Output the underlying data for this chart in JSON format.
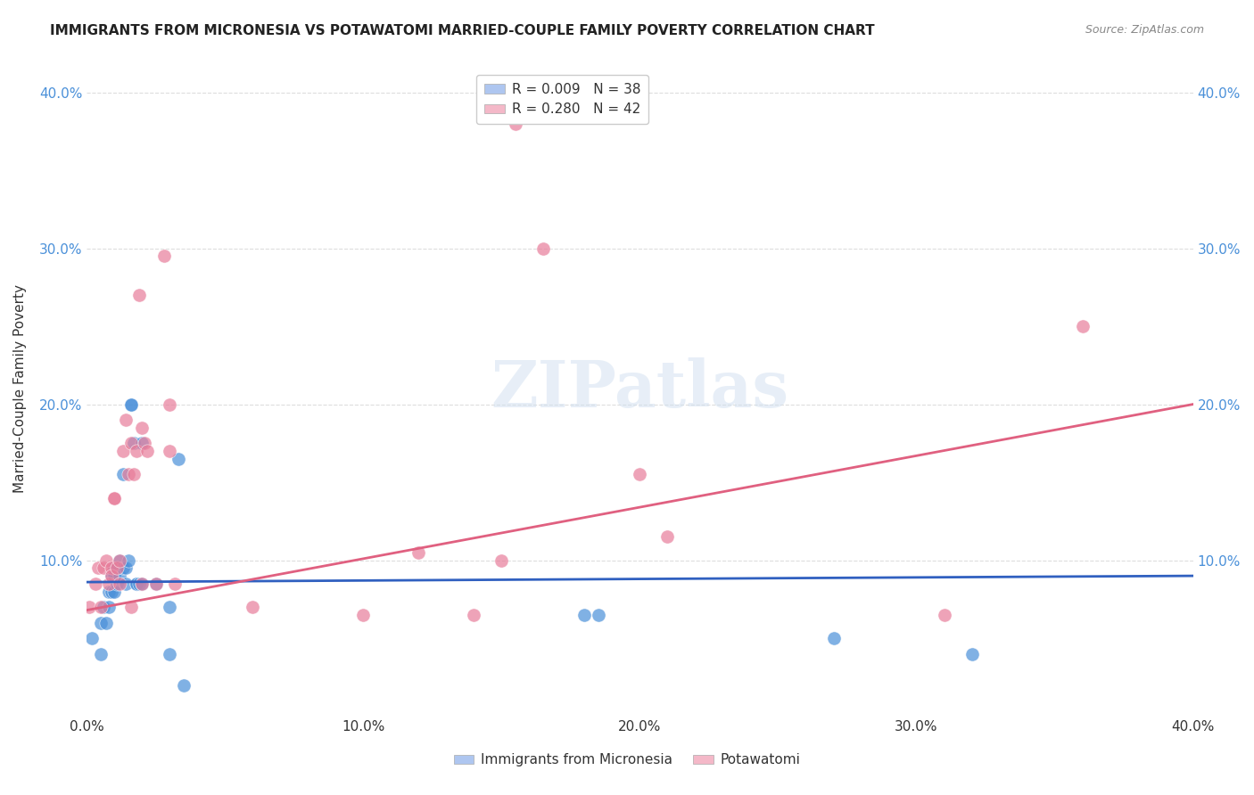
{
  "title": "IMMIGRANTS FROM MICRONESIA VS POTAWATOMI MARRIED-COUPLE FAMILY POVERTY CORRELATION CHART",
  "source": "Source: ZipAtlas.com",
  "xlabel": "",
  "ylabel": "Married-Couple Family Poverty",
  "xlim": [
    0.0,
    0.4
  ],
  "ylim": [
    0.0,
    0.42
  ],
  "xticks": [
    0.0,
    0.1,
    0.2,
    0.3,
    0.4
  ],
  "yticks": [
    0.1,
    0.2,
    0.3,
    0.4
  ],
  "ytick_labels": [
    "10.0%",
    "20.0%",
    "30.0%",
    "40.0%"
  ],
  "xtick_labels": [
    "0.0%",
    "10.0%",
    "20.0%",
    "30.0%",
    "40.0%"
  ],
  "legend_labels": [
    "R = 0.009   N = 38",
    "R = 0.280   N = 42"
  ],
  "legend_colors": [
    "#aec6f0",
    "#f4b8c8"
  ],
  "blue_color": "#4a90d9",
  "pink_color": "#e87d9a",
  "line_blue": "#3060c0",
  "line_pink": "#e06080",
  "watermark": "ZIPatlas",
  "micronesia_x": [
    0.002,
    0.005,
    0.005,
    0.006,
    0.007,
    0.008,
    0.008,
    0.009,
    0.009,
    0.01,
    0.01,
    0.01,
    0.011,
    0.011,
    0.012,
    0.012,
    0.013,
    0.013,
    0.014,
    0.014,
    0.015,
    0.016,
    0.016,
    0.017,
    0.018,
    0.018,
    0.019,
    0.02,
    0.02,
    0.025,
    0.03,
    0.03,
    0.033,
    0.035,
    0.18,
    0.185,
    0.27,
    0.32
  ],
  "micronesia_y": [
    0.05,
    0.06,
    0.04,
    0.07,
    0.06,
    0.08,
    0.07,
    0.09,
    0.08,
    0.095,
    0.09,
    0.08,
    0.095,
    0.085,
    0.1,
    0.09,
    0.155,
    0.095,
    0.095,
    0.085,
    0.1,
    0.2,
    0.2,
    0.175,
    0.085,
    0.085,
    0.085,
    0.175,
    0.085,
    0.085,
    0.07,
    0.04,
    0.165,
    0.02,
    0.065,
    0.065,
    0.05,
    0.04
  ],
  "potawatomi_x": [
    0.001,
    0.003,
    0.004,
    0.005,
    0.006,
    0.007,
    0.008,
    0.009,
    0.009,
    0.01,
    0.01,
    0.011,
    0.012,
    0.012,
    0.013,
    0.014,
    0.015,
    0.016,
    0.016,
    0.017,
    0.018,
    0.019,
    0.02,
    0.02,
    0.021,
    0.022,
    0.025,
    0.028,
    0.03,
    0.03,
    0.032,
    0.06,
    0.1,
    0.12,
    0.14,
    0.15,
    0.155,
    0.165,
    0.2,
    0.21,
    0.31,
    0.36
  ],
  "potawatomi_y": [
    0.07,
    0.085,
    0.095,
    0.07,
    0.095,
    0.1,
    0.085,
    0.095,
    0.09,
    0.14,
    0.14,
    0.095,
    0.1,
    0.085,
    0.17,
    0.19,
    0.155,
    0.175,
    0.07,
    0.155,
    0.17,
    0.27,
    0.085,
    0.185,
    0.175,
    0.17,
    0.085,
    0.295,
    0.2,
    0.17,
    0.085,
    0.07,
    0.065,
    0.105,
    0.065,
    0.1,
    0.38,
    0.3,
    0.155,
    0.115,
    0.065,
    0.25
  ],
  "micronesia_trend": [
    0.0,
    0.4
  ],
  "micronesia_trend_y": [
    0.086,
    0.09
  ],
  "potawatomi_trend": [
    0.0,
    0.4
  ],
  "potawatomi_trend_y": [
    0.068,
    0.2
  ]
}
